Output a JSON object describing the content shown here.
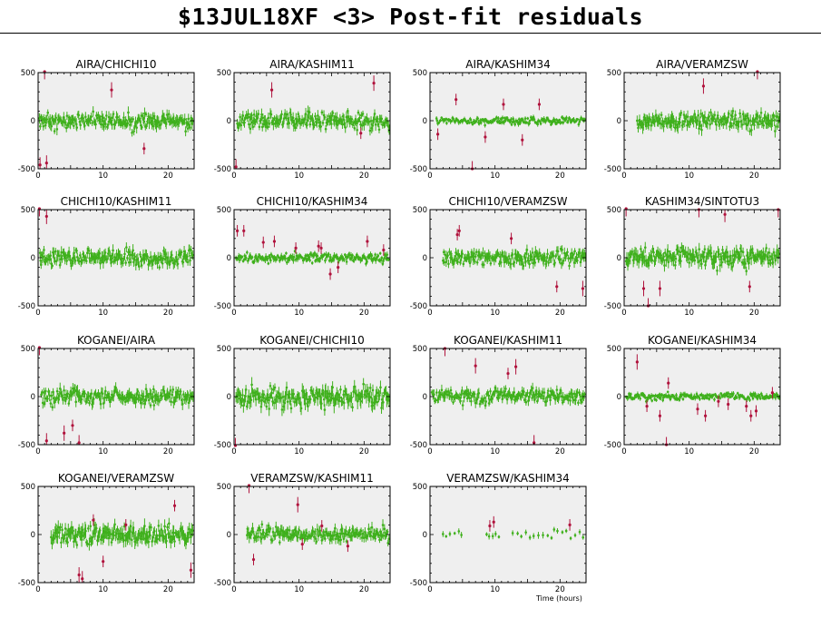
{
  "header": {
    "title": "$13JUL18XF <3> Post-fit residuals"
  },
  "x_axis_label": "Time (hours)",
  "colors": {
    "good": "#3fb01c",
    "flagged": "#b0123c",
    "panel_bg": "#efefef",
    "frame": "#000000"
  },
  "chart_data": [
    {
      "type": "scatter",
      "title": "AIRA/CHICHI10",
      "xlim": [
        0,
        24
      ],
      "ylim": [
        -500,
        500
      ],
      "xticks": [
        0,
        10,
        20
      ],
      "yticks": [
        -500,
        0,
        500
      ],
      "noise": 80,
      "seed": 11,
      "start": 0.2,
      "end": 23.9,
      "outliers": [
        [
          0.3,
          -460
        ],
        [
          1.0,
          510
        ],
        [
          1.3,
          -440
        ],
        [
          11.3,
          320
        ],
        [
          16.3,
          -290
        ]
      ]
    },
    {
      "type": "scatter",
      "title": "AIRA/KASHIM11",
      "xlim": [
        0,
        24
      ],
      "ylim": [
        -500,
        500
      ],
      "xticks": [
        0,
        10,
        20
      ],
      "yticks": [
        -500,
        0,
        500
      ],
      "noise": 80,
      "seed": 12,
      "start": 0.5,
      "end": 23.9,
      "outliers": [
        [
          0.3,
          -480
        ],
        [
          5.8,
          320
        ],
        [
          19.5,
          -130
        ],
        [
          21.5,
          390
        ]
      ]
    },
    {
      "type": "scatter",
      "title": "AIRA/KASHIM34",
      "xlim": [
        0,
        24
      ],
      "ylim": [
        -500,
        500
      ],
      "xticks": [
        0,
        10,
        20
      ],
      "yticks": [
        -500,
        0,
        500
      ],
      "noise": 35,
      "seed": 13,
      "start": 1.0,
      "end": 23.9,
      "outliers": [
        [
          1.2,
          -140
        ],
        [
          4.0,
          220
        ],
        [
          6.5,
          -500
        ],
        [
          8.5,
          -170
        ],
        [
          11.3,
          170
        ],
        [
          14.2,
          -200
        ],
        [
          16.8,
          170
        ]
      ]
    },
    {
      "type": "scatter",
      "title": "AIRA/VERAMZSW",
      "xlim": [
        0,
        24
      ],
      "ylim": [
        -500,
        500
      ],
      "xticks": [
        0,
        10,
        20
      ],
      "yticks": [
        -500,
        0,
        500
      ],
      "noise": 85,
      "seed": 14,
      "start": 2.0,
      "end": 23.9,
      "outliers": [
        [
          12.2,
          360
        ],
        [
          20.5,
          510
        ]
      ]
    },
    {
      "type": "scatter",
      "title": "CHICHI10/KASHIM11",
      "xlim": [
        0,
        24
      ],
      "ylim": [
        -500,
        500
      ],
      "xticks": [
        0,
        10,
        20
      ],
      "yticks": [
        -500,
        0,
        500
      ],
      "noise": 80,
      "seed": 21,
      "start": 0.3,
      "end": 23.9,
      "outliers": [
        [
          0.2,
          510
        ],
        [
          1.3,
          430
        ]
      ]
    },
    {
      "type": "scatter",
      "title": "CHICHI10/KASHIM34",
      "xlim": [
        0,
        24
      ],
      "ylim": [
        -500,
        500
      ],
      "xticks": [
        0,
        10,
        20
      ],
      "yticks": [
        -500,
        0,
        500
      ],
      "noise": 45,
      "seed": 22,
      "start": 0.3,
      "end": 23.9,
      "outliers": [
        [
          0.5,
          280
        ],
        [
          1.5,
          280
        ],
        [
          4.5,
          160
        ],
        [
          6.2,
          170
        ],
        [
          9.5,
          100
        ],
        [
          13.0,
          120
        ],
        [
          13.4,
          100
        ],
        [
          14.8,
          -170
        ],
        [
          16.0,
          -100
        ],
        [
          20.5,
          170
        ],
        [
          23.0,
          80
        ]
      ]
    },
    {
      "type": "scatter",
      "title": "CHICHI10/VERAMZSW",
      "xlim": [
        0,
        24
      ],
      "ylim": [
        -500,
        500
      ],
      "xticks": [
        0,
        10,
        20
      ],
      "yticks": [
        -500,
        0,
        500
      ],
      "noise": 75,
      "seed": 23,
      "start": 2.0,
      "end": 23.9,
      "outliers": [
        [
          4.2,
          240
        ],
        [
          4.5,
          280
        ],
        [
          12.5,
          200
        ],
        [
          19.5,
          -300
        ],
        [
          23.5,
          -320
        ]
      ]
    },
    {
      "type": "scatter",
      "title": "KASHIM34/SINTOTU3",
      "xlim": [
        0,
        24
      ],
      "ylim": [
        -500,
        500
      ],
      "xticks": [
        0,
        10,
        20
      ],
      "yticks": [
        -500,
        0,
        500
      ],
      "noise": 95,
      "seed": 24,
      "start": 0.3,
      "end": 23.9,
      "outliers": [
        [
          0.3,
          510
        ],
        [
          3.0,
          -320
        ],
        [
          3.7,
          -500
        ],
        [
          5.5,
          -320
        ],
        [
          11.5,
          500
        ],
        [
          15.5,
          450
        ],
        [
          19.3,
          -300
        ],
        [
          23.7,
          500
        ]
      ]
    },
    {
      "type": "scatter",
      "title": "KOGANEI/AIRA",
      "xlim": [
        0,
        24
      ],
      "ylim": [
        -500,
        500
      ],
      "xticks": [
        0,
        10,
        20
      ],
      "yticks": [
        -500,
        0,
        500
      ],
      "noise": 80,
      "seed": 31,
      "start": 0.5,
      "end": 23.9,
      "outliers": [
        [
          0.2,
          510
        ],
        [
          1.3,
          -460
        ],
        [
          4.0,
          -380
        ],
        [
          5.3,
          -300
        ],
        [
          6.3,
          -480
        ]
      ]
    },
    {
      "type": "scatter",
      "title": "KOGANEI/CHICHI10",
      "xlim": [
        0,
        24
      ],
      "ylim": [
        -500,
        500
      ],
      "xticks": [
        0,
        10,
        20
      ],
      "yticks": [
        -500,
        0,
        500
      ],
      "noise": 105,
      "seed": 32,
      "start": 0.3,
      "end": 23.9,
      "outliers": [
        [
          0.2,
          -510
        ]
      ]
    },
    {
      "type": "scatter",
      "title": "KOGANEI/KASHIM11",
      "xlim": [
        0,
        24
      ],
      "ylim": [
        -500,
        500
      ],
      "xticks": [
        0,
        10,
        20
      ],
      "yticks": [
        -500,
        0,
        500
      ],
      "noise": 70,
      "seed": 33,
      "start": 0.3,
      "end": 23.9,
      "outliers": [
        [
          2.3,
          500
        ],
        [
          7.0,
          320
        ],
        [
          12.0,
          240
        ],
        [
          13.2,
          310
        ],
        [
          16.0,
          -480
        ]
      ]
    },
    {
      "type": "scatter",
      "title": "KOGANEI/KASHIM34",
      "xlim": [
        0,
        24
      ],
      "ylim": [
        -500,
        500
      ],
      "xticks": [
        0,
        10,
        20
      ],
      "yticks": [
        -500,
        0,
        500
      ],
      "noise": 35,
      "seed": 34,
      "start": 0.3,
      "end": 23.9,
      "outliers": [
        [
          2.0,
          360
        ],
        [
          3.5,
          -100
        ],
        [
          5.5,
          -200
        ],
        [
          6.5,
          -500
        ],
        [
          6.8,
          140
        ],
        [
          11.3,
          -130
        ],
        [
          12.5,
          -200
        ],
        [
          14.5,
          -50
        ],
        [
          16.0,
          -80
        ],
        [
          18.8,
          -100
        ],
        [
          19.5,
          -200
        ],
        [
          20.3,
          -150
        ],
        [
          22.8,
          40
        ]
      ]
    },
    {
      "type": "scatter",
      "title": "KOGANEI/VERAMZSW",
      "xlim": [
        0,
        24
      ],
      "ylim": [
        -500,
        500
      ],
      "xticks": [
        0,
        10,
        20
      ],
      "yticks": [
        -500,
        0,
        500
      ],
      "noise": 100,
      "seed": 41,
      "start": 2.0,
      "end": 23.9,
      "outliers": [
        [
          6.3,
          -420
        ],
        [
          6.8,
          -460
        ],
        [
          8.5,
          150
        ],
        [
          10.0,
          -280
        ],
        [
          13.5,
          100
        ],
        [
          21.0,
          300
        ],
        [
          23.5,
          -370
        ]
      ]
    },
    {
      "type": "scatter",
      "title": "VERAMZSW/KASHIM11",
      "xlim": [
        0,
        24
      ],
      "ylim": [
        -500,
        500
      ],
      "xticks": [
        0,
        10,
        20
      ],
      "yticks": [
        -500,
        0,
        500
      ],
      "noise": 75,
      "seed": 42,
      "start": 2.0,
      "end": 23.9,
      "outliers": [
        [
          2.3,
          510
        ],
        [
          3.0,
          -260
        ],
        [
          9.8,
          310
        ],
        [
          10.5,
          -100
        ],
        [
          13.5,
          90
        ],
        [
          17.5,
          -120
        ]
      ]
    },
    {
      "type": "scatter",
      "title": "VERAMZSW/KASHIM34",
      "xlim": [
        0,
        24
      ],
      "ylim": [
        -500,
        500
      ],
      "xticks": [
        0,
        10,
        20
      ],
      "yticks": [
        -500,
        0,
        500
      ],
      "noise": 45,
      "seed": 43,
      "start": 2.0,
      "end": 23.9,
      "sparse": true,
      "outliers": [
        [
          9.2,
          90
        ],
        [
          9.8,
          130
        ],
        [
          21.5,
          100
        ]
      ]
    }
  ]
}
